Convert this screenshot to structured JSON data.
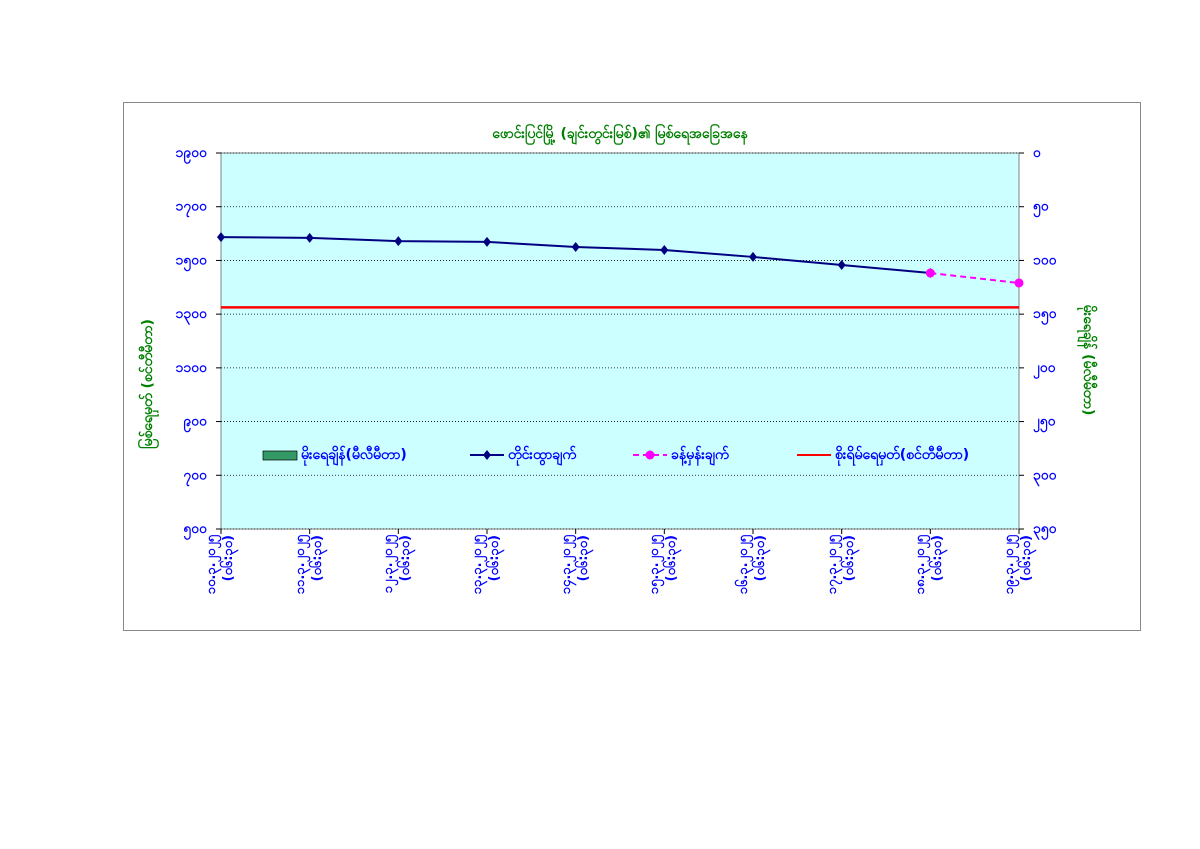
{
  "chart_data": {
    "type": "line",
    "title": "ဖောင်းပြင်မြို့ (ချင်းတွင်းမြစ်)၏ မြစ်ရေအခြေအနေ",
    "ylabel": "မြစ်ရေမှတ် (စင်တီမီတာ)",
    "y2label": "မိုးရေချိန် (မီလီမီတာ)",
    "categories": [
      "၁၀.၃.၂၀၂၅ (၀၆:၃၀)",
      "၁၁.၃.၂၀၂၅ (၀၆:၃၀)",
      "၁၂.၃.၂၀၂၅ (၀၆:၃၀)",
      "၁၃.၃.၂၀၂၅ (၀၆:၃၀)",
      "၁၄.၃.၂၀၂၅ (၀၆:၃၀)",
      "၁၅.၃.၂၀၂၅ (၀၆:၃၀)",
      "၁၆.၃.၂၀၂၅ (၀၆:၃၀)",
      "၁၇.၃.၂၀၂၅ (၀၆:၃၀)",
      "၁၈.၃.၂၀၂၅ (၀၆:၃၀)",
      "၁၉.၃.၂၀၂၅ (၀၆:၃၀)"
    ],
    "series": [
      {
        "name": "မိုးရေချိန်(မီလီမီတာ)",
        "color": "#339966",
        "axis": "y2",
        "kind": "bar",
        "values": [
          null,
          null,
          null,
          null,
          null,
          null,
          null,
          null,
          null,
          null
        ]
      },
      {
        "name": "တိုင်းထွာချက်",
        "color": "#000080",
        "kind": "line",
        "marker": "diamond",
        "values": [
          1587,
          1584,
          1572,
          1569,
          1550,
          1539,
          1513,
          1483,
          1453,
          null
        ]
      },
      {
        "name": "ခန့်မှန်းချက်",
        "color": "#ff00ff",
        "kind": "line",
        "marker": "circle",
        "dashed": true,
        "values": [
          null,
          null,
          null,
          null,
          null,
          null,
          null,
          null,
          1453,
          1416
        ]
      },
      {
        "name": "စိုးရိမ်ရေမှတ်(စင်တီမီတာ)",
        "color": "#ff0000",
        "kind": "line",
        "values": [
          1325,
          1325,
          1325,
          1325,
          1325,
          1325,
          1325,
          1325,
          1325,
          1325
        ]
      }
    ],
    "ylim": [
      500,
      1900
    ],
    "yticks": [
      {
        "value": 500,
        "label": "၅၀၀"
      },
      {
        "value": 700,
        "label": "၇၀၀"
      },
      {
        "value": 900,
        "label": "၉၀၀"
      },
      {
        "value": 1100,
        "label": "၁၁၀၀"
      },
      {
        "value": 1300,
        "label": "၁၃၀၀"
      },
      {
        "value": 1500,
        "label": "၁၅၀၀"
      },
      {
        "value": 1700,
        "label": "၁၇၀၀"
      },
      {
        "value": 1900,
        "label": "၁၉၀၀"
      }
    ],
    "y2lim": [
      0,
      350
    ],
    "y2_reversed": true,
    "y2ticks": [
      {
        "value": 0,
        "label": "၀"
      },
      {
        "value": 50,
        "label": "၅၀"
      },
      {
        "value": 100,
        "label": "၁၀၀"
      },
      {
        "value": 150,
        "label": "၁၅၀"
      },
      {
        "value": 200,
        "label": "၂၀၀"
      },
      {
        "value": 250,
        "label": "၂၅၀"
      },
      {
        "value": 300,
        "label": "၃၀၀"
      },
      {
        "value": 350,
        "label": "၃၅၀"
      }
    ],
    "grid": true
  }
}
